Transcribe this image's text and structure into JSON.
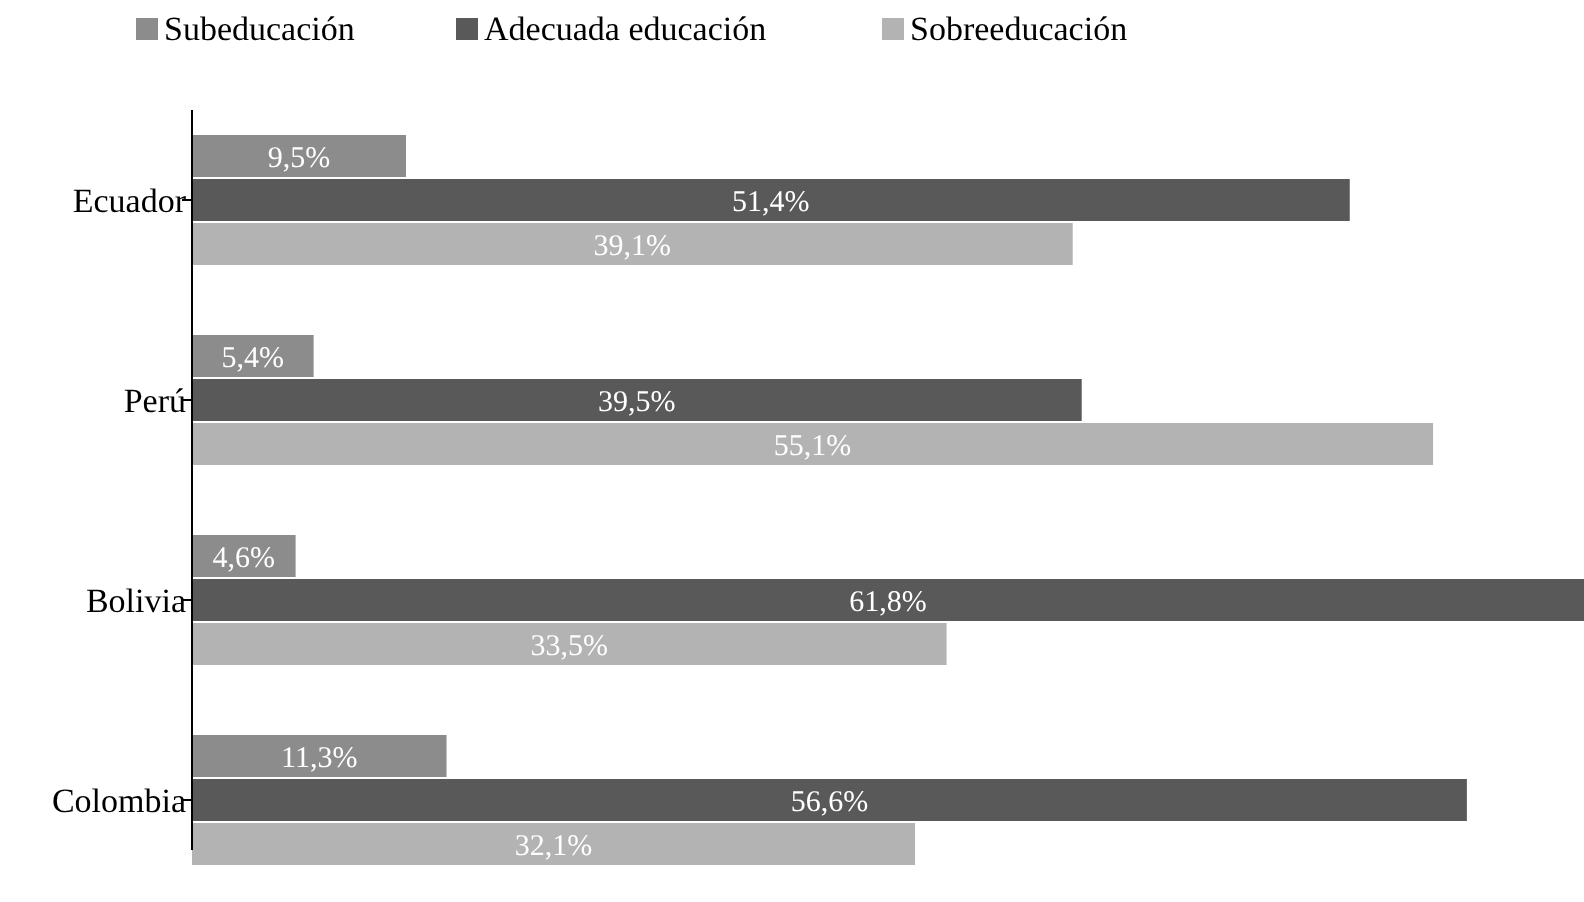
{
  "chart_data": {
    "type": "bar",
    "orientation": "horizontal",
    "categories": [
      "Ecuador",
      "Perú",
      "Bolivia",
      "Colombia"
    ],
    "series": [
      {
        "name": "Subeducación",
        "color": "#8c8c8c",
        "values": [
          9.5,
          5.4,
          4.6,
          11.3
        ],
        "value_labels": [
          "9,5%",
          "5,4%",
          "4,6%",
          "11,3%"
        ]
      },
      {
        "name": "Adecuada educación",
        "color": "#595959",
        "values": [
          51.4,
          39.5,
          61.8,
          56.6
        ],
        "value_labels": [
          "51,4%",
          "39,5%",
          "61,8%",
          "56,6%"
        ]
      },
      {
        "name": "Sobreeducación",
        "color": "#b3b3b3",
        "values": [
          39.1,
          55.1,
          33.5,
          32.1
        ],
        "value_labels": [
          "39,1%",
          "55,1%",
          "33,5%",
          "32,1%"
        ]
      }
    ],
    "legend": "top"
  }
}
